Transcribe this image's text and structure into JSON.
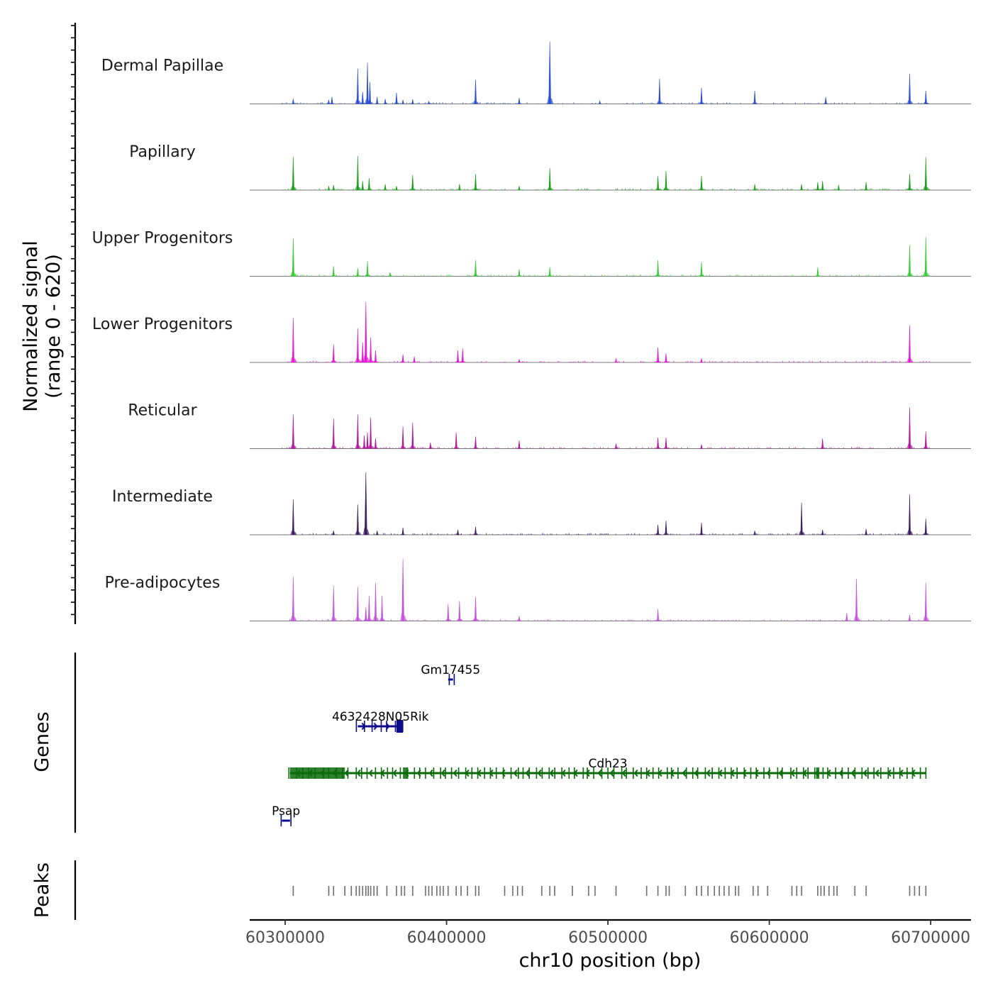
{
  "chart_data": {
    "type": "area",
    "title": "",
    "chromosome": "chr10",
    "xlabel": "chr10 position (bp)",
    "ylabel_lines": [
      "Normalized signal",
      "(range 0 - 620)"
    ],
    "y_range": [
      0,
      620
    ],
    "xlim": [
      60278000,
      60725000
    ],
    "x_ticks": [
      60300000,
      60400000,
      60500000,
      60600000,
      60700000
    ],
    "x_tick_labels": [
      "60300000",
      "60400000",
      "60500000",
      "60600000",
      "60700000"
    ],
    "series": [
      {
        "name": "Dermal Papillae",
        "color": "#2b4fd6",
        "peaks": [
          [
            60305000,
            50
          ],
          [
            60327000,
            40
          ],
          [
            60329000,
            70
          ],
          [
            60345000,
            350
          ],
          [
            60348000,
            120
          ],
          [
            60351000,
            410
          ],
          [
            60352500,
            220
          ],
          [
            60357000,
            70
          ],
          [
            60362000,
            50
          ],
          [
            60369000,
            110
          ],
          [
            60373000,
            40
          ],
          [
            60379000,
            45
          ],
          [
            60389000,
            25
          ],
          [
            60418000,
            240
          ],
          [
            60445000,
            60
          ],
          [
            60464000,
            620
          ],
          [
            60495000,
            30
          ],
          [
            60532000,
            250
          ],
          [
            60558000,
            160
          ],
          [
            60591000,
            130
          ],
          [
            60635000,
            70
          ],
          [
            60687000,
            300
          ],
          [
            60697000,
            130
          ]
        ]
      },
      {
        "name": "Papillary",
        "color": "#1aa01a",
        "peaks": [
          [
            60305000,
            330
          ],
          [
            60327000,
            40
          ],
          [
            60330000,
            50
          ],
          [
            60345000,
            340
          ],
          [
            60348000,
            90
          ],
          [
            60352000,
            120
          ],
          [
            60362000,
            60
          ],
          [
            60369000,
            40
          ],
          [
            60379000,
            150
          ],
          [
            60408000,
            60
          ],
          [
            60418000,
            160
          ],
          [
            60445000,
            40
          ],
          [
            60464000,
            220
          ],
          [
            60531000,
            140
          ],
          [
            60536000,
            190
          ],
          [
            60558000,
            140
          ],
          [
            60591000,
            60
          ],
          [
            60620000,
            60
          ],
          [
            60630000,
            80
          ],
          [
            60633000,
            90
          ],
          [
            60643000,
            50
          ],
          [
            60660000,
            80
          ],
          [
            60687000,
            160
          ],
          [
            60697000,
            330
          ]
        ]
      },
      {
        "name": "Upper Progenitors",
        "color": "#33cc33",
        "peaks": [
          [
            60305000,
            380
          ],
          [
            60330000,
            100
          ],
          [
            60345000,
            80
          ],
          [
            60351000,
            150
          ],
          [
            60365000,
            40
          ],
          [
            60418000,
            160
          ],
          [
            60445000,
            70
          ],
          [
            60464000,
            90
          ],
          [
            60531000,
            160
          ],
          [
            60558000,
            140
          ],
          [
            60630000,
            90
          ],
          [
            60687000,
            310
          ],
          [
            60697000,
            390
          ]
        ]
      },
      {
        "name": "Lower Progenitors",
        "color": "#e61ad4",
        "peaks": [
          [
            60305000,
            440
          ],
          [
            60330000,
            180
          ],
          [
            60345000,
            340
          ],
          [
            60348000,
            200
          ],
          [
            60350000,
            600
          ],
          [
            60353000,
            250
          ],
          [
            60356000,
            120
          ],
          [
            60373000,
            80
          ],
          [
            60380000,
            60
          ],
          [
            60407000,
            120
          ],
          [
            60410000,
            140
          ],
          [
            60445000,
            30
          ],
          [
            60505000,
            40
          ],
          [
            60531000,
            150
          ],
          [
            60536000,
            90
          ],
          [
            60558000,
            40
          ],
          [
            60687000,
            370
          ]
        ]
      },
      {
        "name": "Reticular",
        "color": "#b3179f",
        "peaks": [
          [
            60305000,
            340
          ],
          [
            60330000,
            300
          ],
          [
            60345000,
            340
          ],
          [
            60349000,
            130
          ],
          [
            60351000,
            160
          ],
          [
            60353000,
            310
          ],
          [
            60356000,
            100
          ],
          [
            60373000,
            220
          ],
          [
            60379000,
            260
          ],
          [
            60390000,
            60
          ],
          [
            60406000,
            160
          ],
          [
            60418000,
            120
          ],
          [
            60445000,
            80
          ],
          [
            60505000,
            50
          ],
          [
            60531000,
            110
          ],
          [
            60536000,
            110
          ],
          [
            60558000,
            40
          ],
          [
            60633000,
            100
          ],
          [
            60687000,
            410
          ],
          [
            60697000,
            170
          ]
        ]
      },
      {
        "name": "Intermediate",
        "color": "#3b1c63",
        "peaks": [
          [
            60305000,
            350
          ],
          [
            60330000,
            40
          ],
          [
            60345000,
            300
          ],
          [
            60350000,
            620
          ],
          [
            60357000,
            40
          ],
          [
            60373000,
            70
          ],
          [
            60407000,
            50
          ],
          [
            60418000,
            80
          ],
          [
            60531000,
            100
          ],
          [
            60536000,
            140
          ],
          [
            60558000,
            120
          ],
          [
            60591000,
            40
          ],
          [
            60620000,
            320
          ],
          [
            60633000,
            50
          ],
          [
            60660000,
            60
          ],
          [
            60687000,
            400
          ],
          [
            60697000,
            160
          ]
        ]
      },
      {
        "name": "Pre-adipocytes",
        "color": "#c653e0",
        "peaks": [
          [
            60305000,
            440
          ],
          [
            60330000,
            350
          ],
          [
            60345000,
            340
          ],
          [
            60350000,
            140
          ],
          [
            60352000,
            250
          ],
          [
            60356000,
            380
          ],
          [
            60360000,
            250
          ],
          [
            60373000,
            620
          ],
          [
            60401000,
            170
          ],
          [
            60408000,
            200
          ],
          [
            60418000,
            240
          ],
          [
            60445000,
            50
          ],
          [
            60531000,
            120
          ],
          [
            60648000,
            80
          ],
          [
            60654000,
            420
          ],
          [
            60687000,
            60
          ],
          [
            60697000,
            380
          ]
        ]
      }
    ],
    "genes_track_label": "Genes",
    "genes": [
      {
        "name": "Gm17455",
        "start": 60401000,
        "end": 60404000,
        "strand": "+",
        "color": "#0c0c8a"
      },
      {
        "name": "4632428N05Rik",
        "start": 60345000,
        "end": 60373000,
        "strand": "+",
        "color": "#0c0c8a"
      },
      {
        "name": "Cdh23",
        "start": 60303000,
        "end": 60697000,
        "strand": "-",
        "color": "#0b6b0b"
      },
      {
        "name": "Psap",
        "start": 60298000,
        "end": 60303000,
        "strand": "+",
        "color": "#0c0c8a"
      }
    ],
    "peaks_track_label": "Peaks",
    "peak_positions": [
      60305000,
      60327000,
      60330000,
      60337000,
      60341000,
      60344000,
      60346000,
      60348000,
      60350000,
      60351500,
      60353000,
      60355000,
      60357000,
      60363000,
      60369000,
      60372000,
      60374000,
      60379000,
      60387000,
      60389000,
      60391000,
      60394000,
      60396000,
      60398000,
      60401000,
      60406000,
      60409000,
      60413000,
      60418000,
      60420000,
      60436000,
      60441000,
      60444000,
      60447000,
      60459000,
      60464000,
      60467000,
      60478000,
      60488000,
      60492000,
      60505000,
      60524000,
      60531000,
      60536000,
      60538000,
      60548000,
      60555000,
      60558000,
      60562000,
      60566000,
      60569000,
      60572000,
      60575000,
      60579000,
      60581000,
      60590000,
      60593000,
      60599000,
      60614000,
      60617000,
      60620000,
      60630000,
      60632000,
      60634000,
      60637000,
      60640000,
      60642000,
      60653000,
      60660000,
      60687000,
      60690000,
      60693000,
      60697000
    ]
  }
}
